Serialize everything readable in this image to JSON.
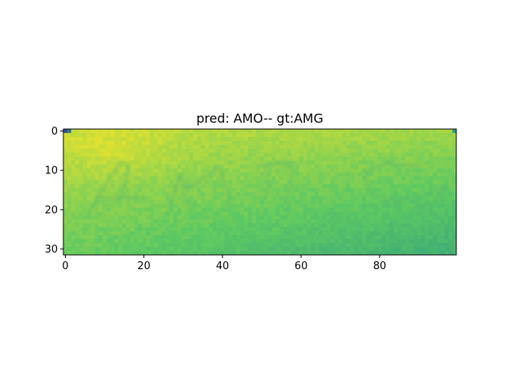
{
  "chart_data": {
    "type": "heatmap",
    "title": "pred: AMO-- gt:AMG",
    "image": {
      "rows": 32,
      "cols": 100,
      "colormap": "viridis"
    },
    "x_ticks": [
      "0",
      "20",
      "40",
      "60",
      "80"
    ],
    "y_ticks": [
      "0",
      "10",
      "20",
      "30"
    ],
    "xlim": [
      -0.5,
      99.5
    ],
    "ylim": [
      31.5,
      -0.5
    ],
    "handwritten_text": "AMG"
  }
}
